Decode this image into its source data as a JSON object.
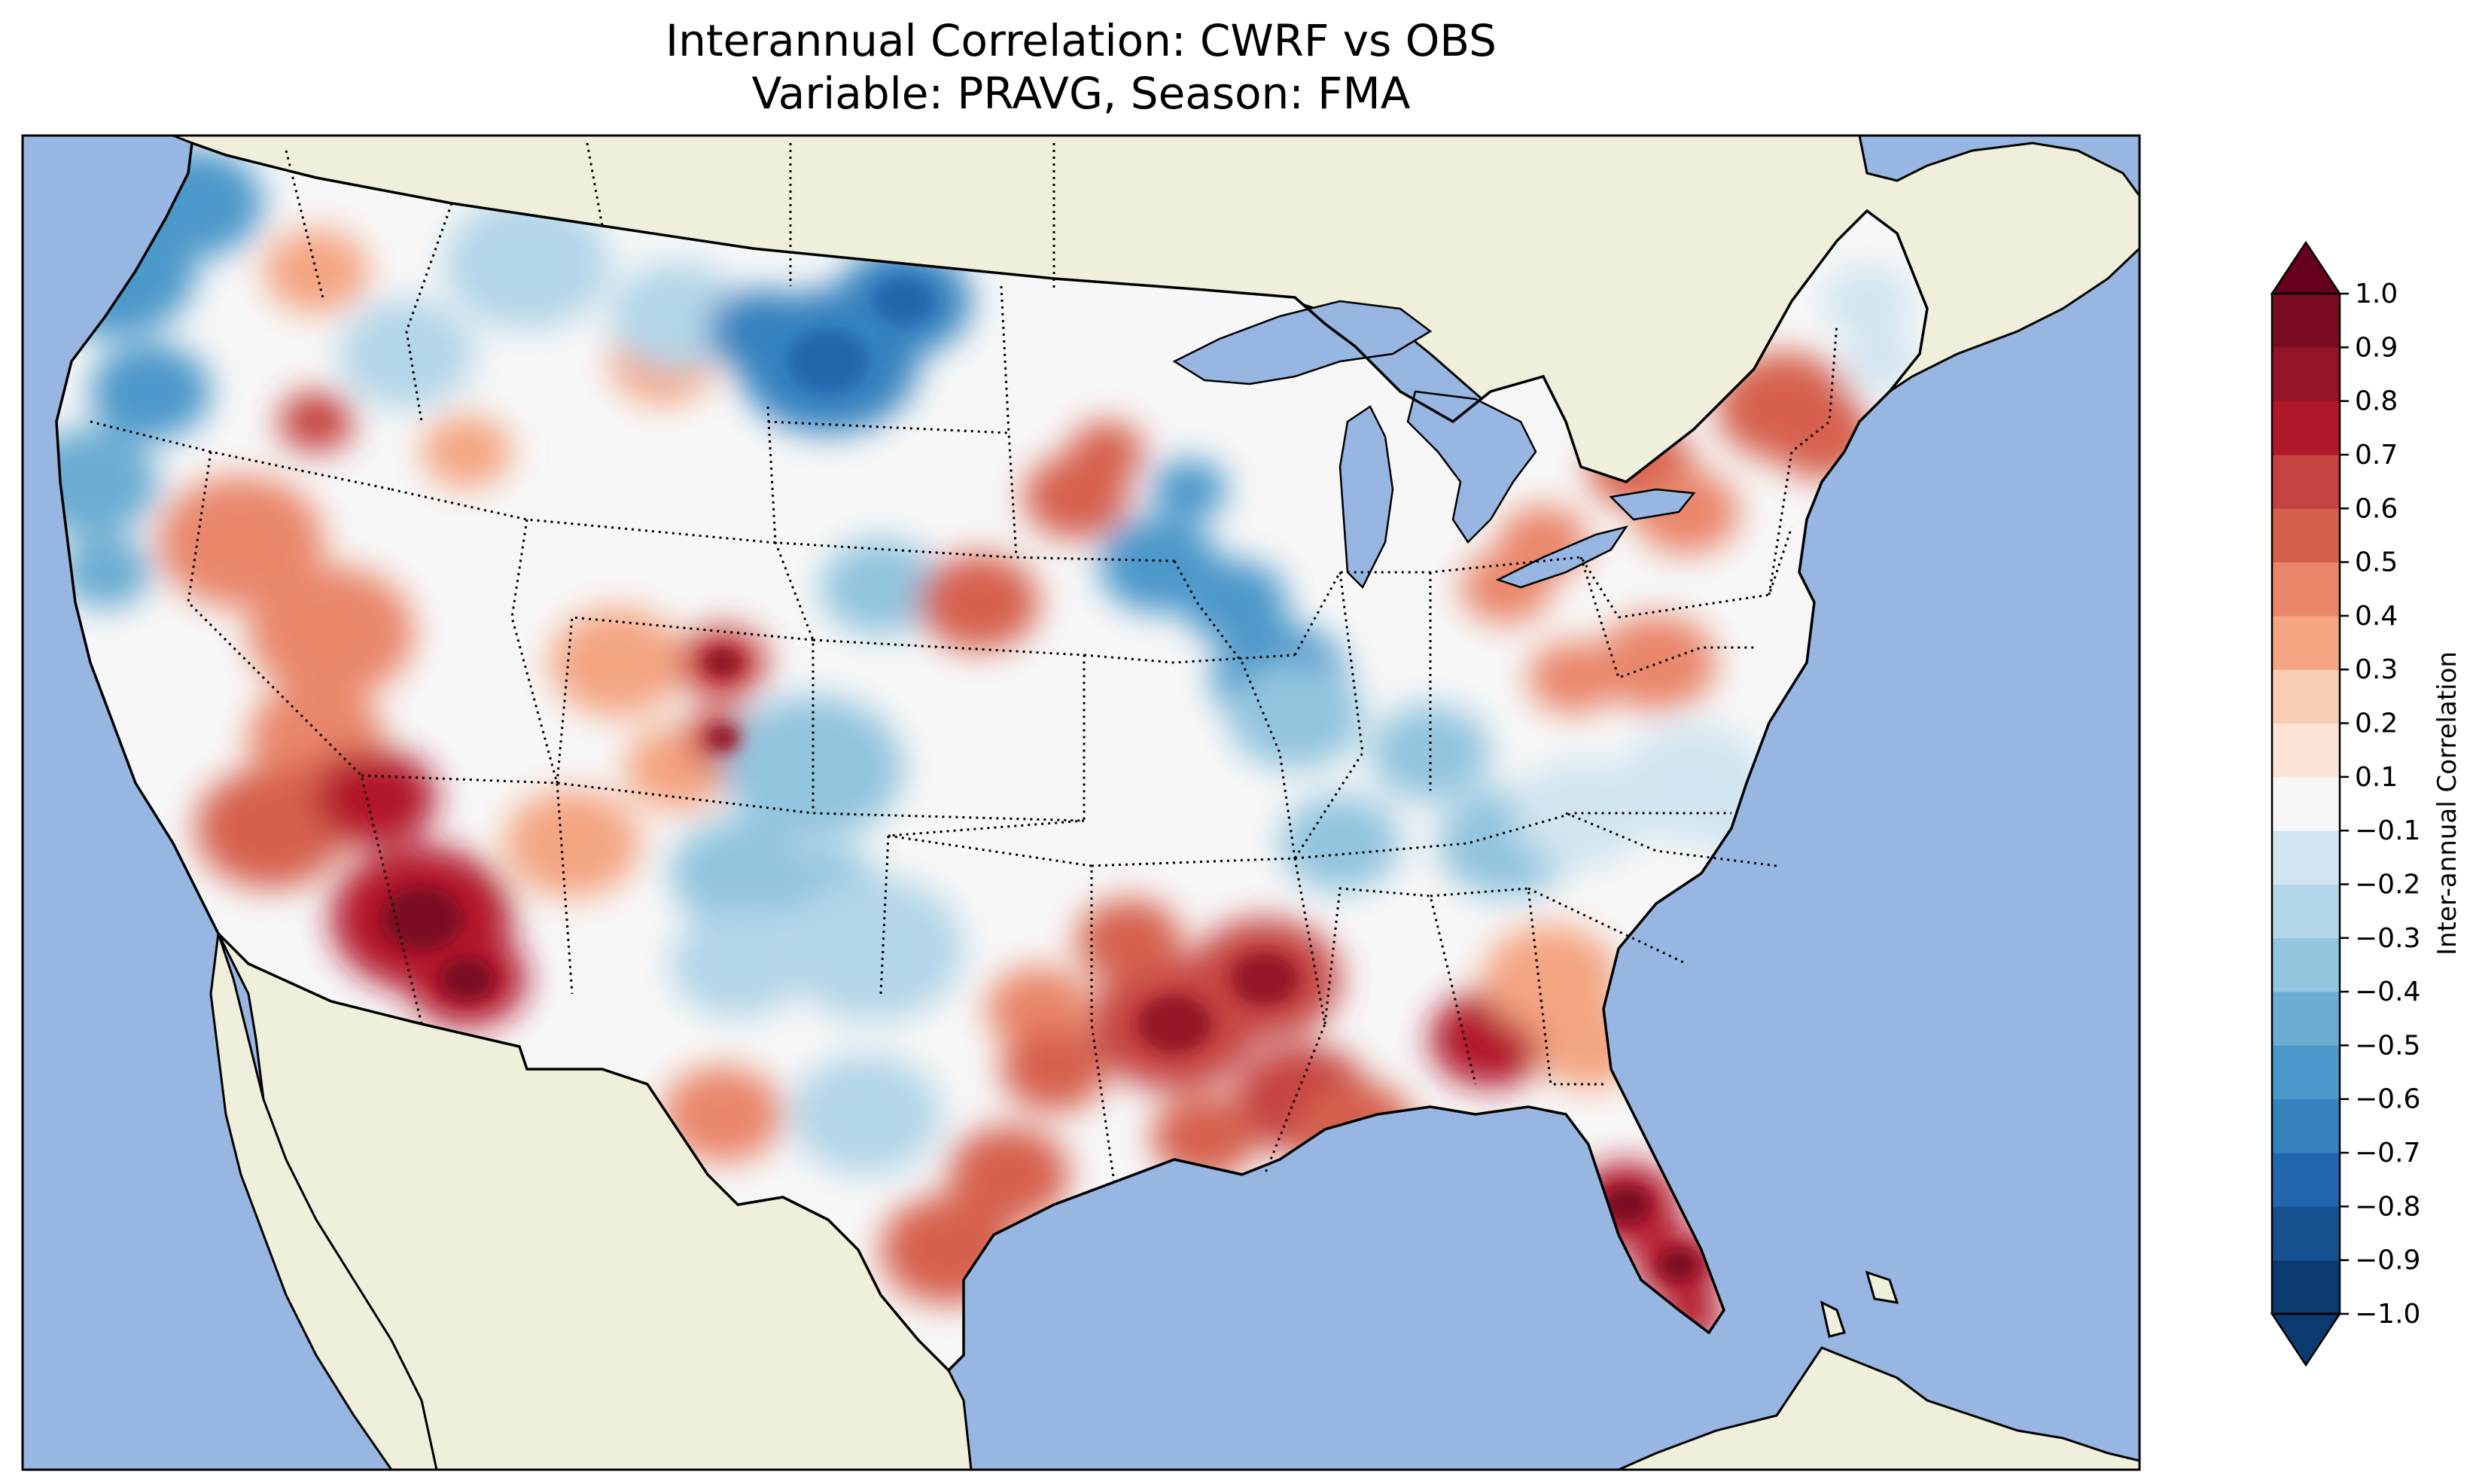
{
  "title": {
    "line1": "Interannual Correlation: CWRF vs OBS",
    "line2": "Variable: PRAVG, Season: FMA"
  },
  "colors": {
    "ocean": "#97b6e1",
    "land": "#efefdb",
    "border": "#000000"
  },
  "colorbar": {
    "label": "Inter-annual Correlation",
    "extend": "both",
    "ticks": [
      "−1.0",
      "−0.9",
      "−0.8",
      "−0.7",
      "−0.6",
      "−0.5",
      "−0.4",
      "−0.3",
      "−0.2",
      "−0.1",
      "0.1",
      "0.2",
      "0.3",
      "0.4",
      "0.5",
      "0.6",
      "0.7",
      "0.8",
      "0.9",
      "1.0"
    ],
    "levels": [
      -1.0,
      -0.9,
      -0.8,
      -0.7,
      -0.6,
      -0.5,
      -0.4,
      -0.3,
      -0.2,
      -0.1,
      0.1,
      0.2,
      0.3,
      0.4,
      0.5,
      0.6,
      0.7,
      0.8,
      0.9,
      1.0
    ],
    "colors": [
      "#0b3a70",
      "#16508f",
      "#2166ac",
      "#3582bf",
      "#4b98ca",
      "#6bacd1",
      "#92c5de",
      "#b3d6e8",
      "#d1e5f0",
      "#f7f7f7",
      "#fbe3d6",
      "#f9cdb5",
      "#f4a582",
      "#e9866a",
      "#d6604d",
      "#c5433f",
      "#b2182b",
      "#941427",
      "#7a0c22"
    ],
    "under_color": "#0b3a70",
    "over_color": "#67001f"
  },
  "map": {
    "projection": "Lambert-like CONUS domain",
    "field": "PRAVG interannual correlation (CWRF vs OBS), FMA",
    "regions": [
      {
        "name": "pacific-northwest",
        "value": -0.55
      },
      {
        "name": "northern-california-coast",
        "value": -0.45
      },
      {
        "name": "idaho",
        "value": 0.35
      },
      {
        "name": "montana-central",
        "value": -0.25
      },
      {
        "name": "montana-north-dakota-border",
        "value": -0.65
      },
      {
        "name": "nevada-west",
        "value": 0.45
      },
      {
        "name": "southern-california-desert",
        "value": 0.55
      },
      {
        "name": "arizona-southern",
        "value": 0.75
      },
      {
        "name": "utah-colorado",
        "value": 0.35
      },
      {
        "name": "colorado-rockies",
        "value": 0.65
      },
      {
        "name": "kansas-oklahoma",
        "value": -0.35
      },
      {
        "name": "new-mexico-east",
        "value": -0.25
      },
      {
        "name": "west-texas",
        "value": 0.45
      },
      {
        "name": "south-texas-coast",
        "value": 0.55
      },
      {
        "name": "iowa",
        "value": -0.55
      },
      {
        "name": "nebraska-east",
        "value": 0.55
      },
      {
        "name": "illinois-indiana",
        "value": -0.35
      },
      {
        "name": "arkansas-mississippi",
        "value": 0.65
      },
      {
        "name": "louisiana-coast",
        "value": 0.55
      },
      {
        "name": "florida",
        "value": 0.75
      },
      {
        "name": "georgia",
        "value": 0.35
      },
      {
        "name": "virginia",
        "value": 0.45
      },
      {
        "name": "new-york-vermont",
        "value": 0.55
      },
      {
        "name": "pennsylvania",
        "value": 0.4
      },
      {
        "name": "carolinas",
        "value": -0.2
      },
      {
        "name": "new-england-north",
        "value": -0.15
      }
    ]
  }
}
